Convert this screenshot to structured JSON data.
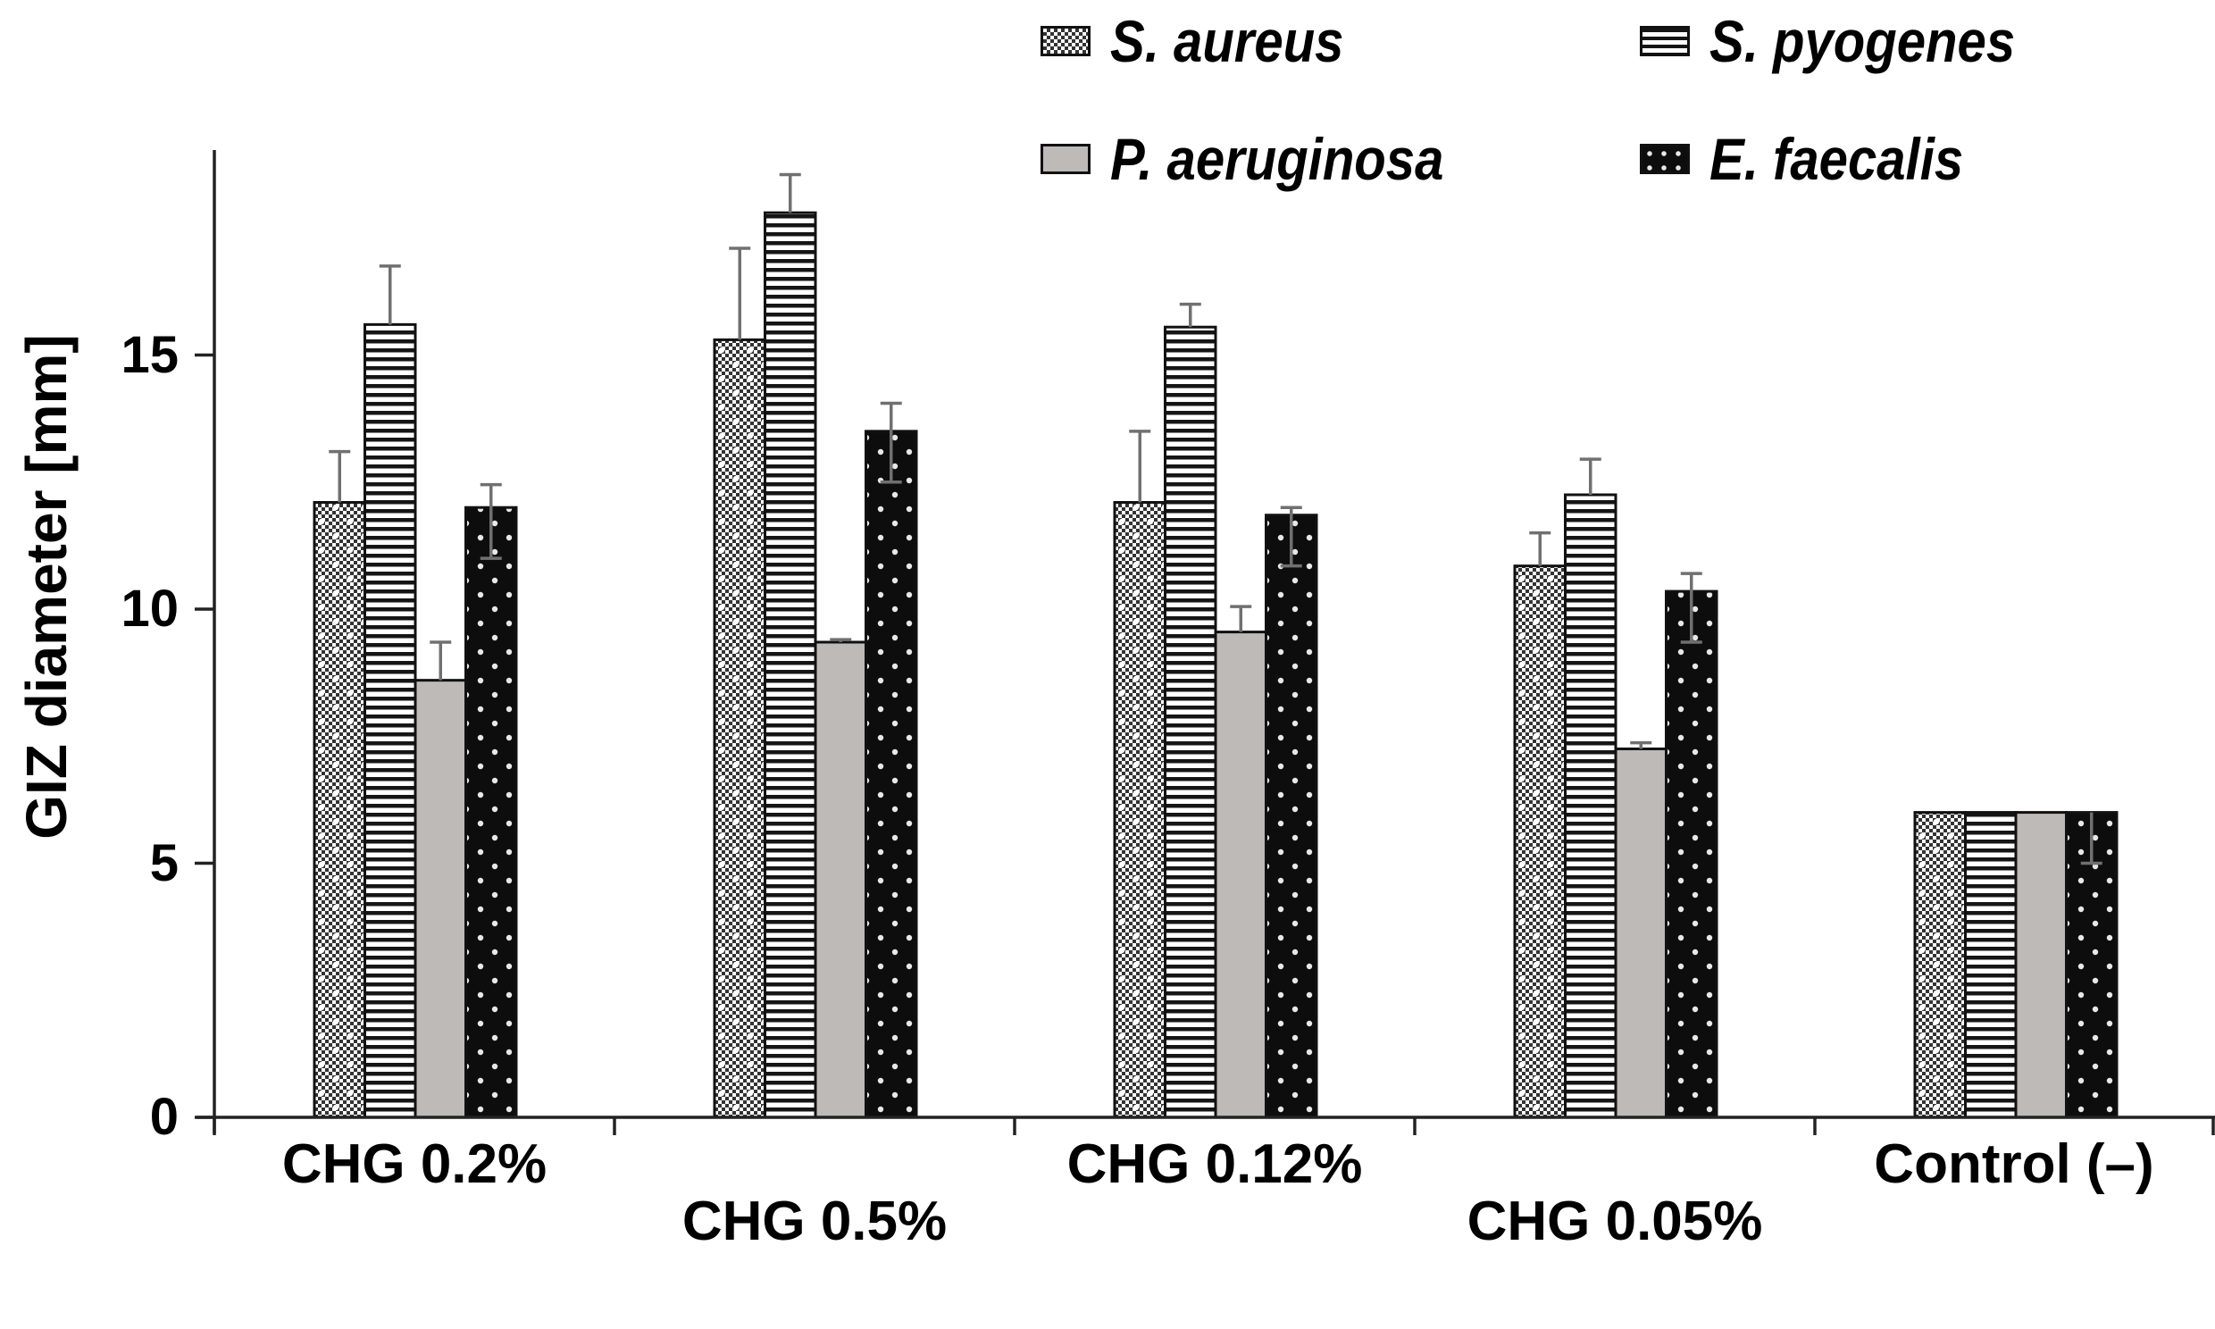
{
  "chart_data": {
    "type": "bar",
    "title": "",
    "xlabel": "",
    "ylabel": "GIZ diameter [mm]",
    "ylim": [
      0,
      18.8
    ],
    "yticks": [
      0,
      5,
      10,
      15
    ],
    "ytick_labels": [
      "0",
      "5",
      "10",
      "15"
    ],
    "grid": false,
    "legend_position": "top-right",
    "categories": [
      "CHG 0.2%",
      "CHG 0.5%",
      "CHG 0.12%",
      "CHG 0.05%",
      "Control (–)"
    ],
    "category_label_rows": [
      "upper",
      "lower",
      "upper",
      "lower",
      "upper"
    ],
    "series": [
      {
        "name": "S. aureus",
        "pattern": "crosshatch-dots",
        "values": [
          12.1,
          15.3,
          12.1,
          10.85,
          6.0
        ],
        "error_upper": [
          1.0,
          1.8,
          1.4,
          0.65,
          0.0
        ],
        "error_lower": [
          0,
          0,
          0,
          0,
          0
        ]
      },
      {
        "name": "S. pyogenes",
        "pattern": "horizontal-stripes",
        "values": [
          15.6,
          17.8,
          15.55,
          12.25,
          6.0
        ],
        "error_upper": [
          1.15,
          0.75,
          0.45,
          0.7,
          0.0
        ],
        "error_lower": [
          0,
          0,
          0,
          0,
          0
        ]
      },
      {
        "name": "P. aeruginosa",
        "pattern": "solid-gray",
        "values": [
          8.6,
          9.35,
          9.55,
          7.25,
          6.0
        ],
        "error_upper": [
          0.75,
          0.05,
          0.5,
          0.12,
          0.0
        ],
        "error_lower": [
          0,
          0,
          0,
          0,
          0
        ]
      },
      {
        "name": "E. faecalis",
        "pattern": "black-dots",
        "values": [
          12.0,
          13.5,
          11.85,
          10.35,
          6.0
        ],
        "error_upper": [
          0.45,
          0.55,
          0.15,
          0.35,
          0.0
        ],
        "error_lower": [
          1.0,
          1.0,
          1.0,
          1.0,
          1.0
        ]
      }
    ],
    "colors": {
      "outline": "#111111",
      "gray_fill": "#bdbab7",
      "error_bar": "#707070",
      "axis": "#222222"
    }
  }
}
